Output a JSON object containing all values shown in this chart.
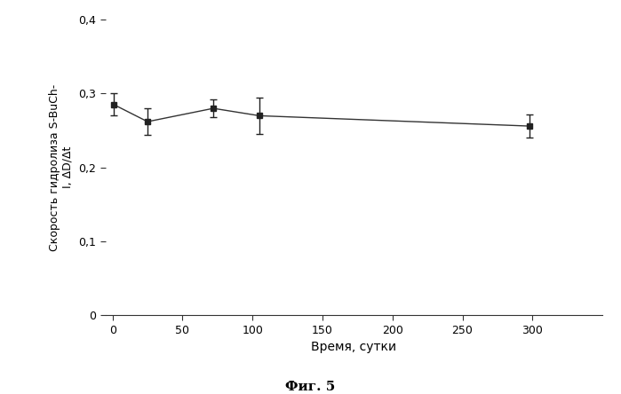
{
  "x": [
    1,
    25,
    72,
    105,
    298
  ],
  "y": [
    0.285,
    0.262,
    0.28,
    0.27,
    0.256
  ],
  "yerr": [
    0.015,
    0.018,
    0.012,
    0.025,
    0.016
  ],
  "xlabel": "Время, сутки",
  "ylabel": "Скорость гидролиза S-BuCh-\nI, ΔD/Δt",
  "caption": "Фиг. 5",
  "xlim": [
    -5,
    350
  ],
  "ylim": [
    0,
    0.4
  ],
  "xticks": [
    0,
    50,
    100,
    150,
    200,
    250,
    300
  ],
  "yticks": [
    0,
    0.1,
    0.2,
    0.3,
    0.4
  ],
  "line_color": "#333333",
  "marker_color": "#222222",
  "background_color": "#ffffff"
}
